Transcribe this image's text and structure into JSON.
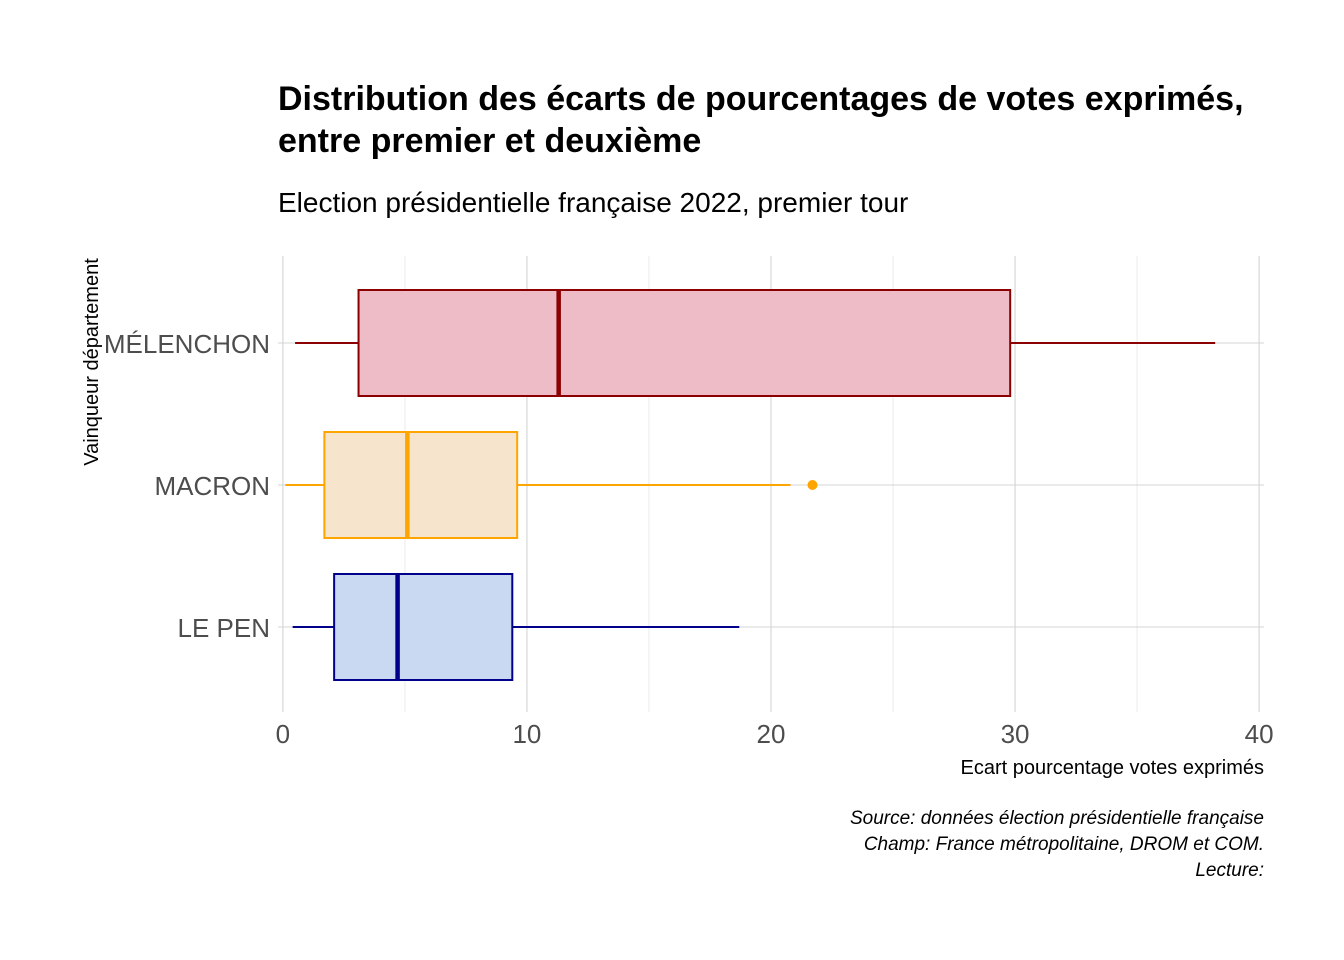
{
  "chart_data": {
    "type": "boxplot",
    "orientation": "horizontal",
    "title": "Distribution des écarts de pourcentages de votes exprimés,",
    "title_line2": "entre premier et deuxième",
    "subtitle": "Election présidentielle française 2022, premier tour",
    "xlabel": "Ecart pourcentage votes exprimés",
    "ylabel": "Vainqueur département",
    "xlim": [
      -0.2,
      40.2
    ],
    "x_ticks": [
      0,
      10,
      20,
      30,
      40
    ],
    "x_tick_labels": [
      "0",
      "10",
      "20",
      "30",
      "40"
    ],
    "grid": true,
    "caption_lines": [
      "Source: données élection présidentielle française",
      "Champ: France métropolitaine, DROM et COM.",
      "Lecture:"
    ],
    "categories": [
      "MÉLENCHON",
      "MACRON",
      "LE PEN"
    ],
    "series": [
      {
        "category": "MÉLENCHON",
        "whisker_low": 0.5,
        "q1": 3.1,
        "median": 11.3,
        "q3": 29.8,
        "whisker_high": 38.2,
        "outliers": [],
        "color": "#8b0000",
        "fill": "#edbcc6"
      },
      {
        "category": "MACRON",
        "whisker_low": 0.1,
        "q1": 1.7,
        "median": 5.1,
        "q3": 9.6,
        "whisker_high": 20.8,
        "outliers": [
          21.7
        ],
        "color": "#ffa500",
        "fill": "#f6e4cc"
      },
      {
        "category": "LE PEN",
        "whisker_low": 0.4,
        "q1": 2.1,
        "median": 4.7,
        "q3": 9.4,
        "whisker_high": 18.7,
        "outliers": [],
        "color": "#00008b",
        "fill": "#cad9f2"
      }
    ]
  }
}
